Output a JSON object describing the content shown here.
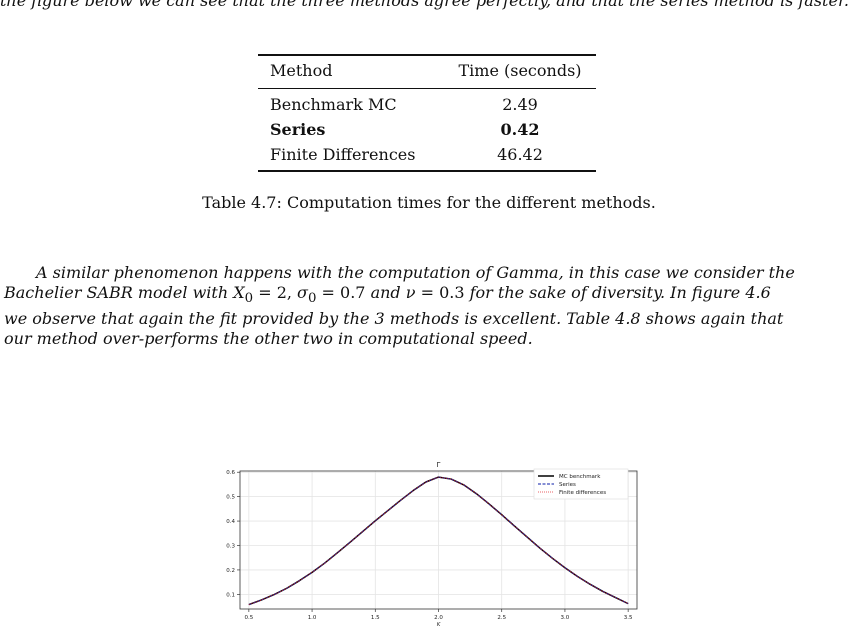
{
  "top_line": "the figure below we can see that the three methods agree perfectly, and that the series method is faster.",
  "table": {
    "headers": [
      "Method",
      "Time (seconds)"
    ],
    "rows": [
      {
        "method": "Benchmark MC",
        "time": "2.49",
        "bold": false
      },
      {
        "method": "Series",
        "time": "0.42",
        "bold": true
      },
      {
        "method": "Finite Differences",
        "time": "46.42",
        "bold": false
      }
    ],
    "caption": "Table 4.7: Computation times for the different methods."
  },
  "paragraph": {
    "p1": "A similar phenomenon happens with the computation of Gamma, in this case we consider the",
    "p2a": "Bachelier SABR model with ",
    "x0": "X",
    "x0_sub": "0",
    "x0_val": " = 2, ",
    "sigma": "σ",
    "sigma_sub": "0",
    "sigma_val": " = 0.7",
    "and": " and ",
    "nu": "ν",
    "nu_val": " = 0.3",
    "p2b": " for the sake of diversity. In figure 4.6",
    "p3": "we observe that again the fit provided by the 3 methods is excellent. Table 4.8 shows again that",
    "p4": "our method over-performs the other two in computational speed."
  },
  "chart_data": {
    "type": "line",
    "title": "Γ",
    "xlabel": "K",
    "ylabel": "",
    "xlim": [
      0.43,
      3.57
    ],
    "ylim": [
      0.04,
      0.605
    ],
    "xticks": [
      "0.5",
      "1.0",
      "1.5",
      "2.0",
      "2.5",
      "3.0",
      "3.5"
    ],
    "yticks": [
      "0.1",
      "0.2",
      "0.3",
      "0.4",
      "0.5",
      "0.6"
    ],
    "grid": true,
    "legend_position": "top-right",
    "x": [
      0.5,
      0.6,
      0.7,
      0.8,
      0.9,
      1.0,
      1.1,
      1.2,
      1.3,
      1.4,
      1.5,
      1.6,
      1.7,
      1.8,
      1.9,
      2.0,
      2.1,
      2.2,
      2.3,
      2.4,
      2.5,
      2.6,
      2.7,
      2.8,
      2.9,
      3.0,
      3.1,
      3.2,
      3.3,
      3.4,
      3.5
    ],
    "series": [
      {
        "name": "MC benchmark",
        "color": "#000000",
        "style": "solid",
        "values": [
          0.058,
          0.077,
          0.099,
          0.125,
          0.156,
          0.19,
          0.228,
          0.27,
          0.313,
          0.357,
          0.401,
          0.443,
          0.485,
          0.525,
          0.56,
          0.58,
          0.572,
          0.548,
          0.512,
          0.47,
          0.426,
          0.38,
          0.335,
          0.29,
          0.248,
          0.209,
          0.173,
          0.141,
          0.112,
          0.087,
          0.062
        ]
      },
      {
        "name": "Series",
        "color": "#0b1ea8",
        "style": "dashed",
        "values": [
          0.058,
          0.077,
          0.099,
          0.125,
          0.156,
          0.19,
          0.228,
          0.27,
          0.313,
          0.357,
          0.401,
          0.443,
          0.485,
          0.525,
          0.56,
          0.58,
          0.572,
          0.548,
          0.512,
          0.47,
          0.426,
          0.38,
          0.335,
          0.29,
          0.248,
          0.209,
          0.173,
          0.141,
          0.112,
          0.087,
          0.062
        ]
      },
      {
        "name": "Finite differences",
        "color": "#e0191f",
        "style": "dotted",
        "values": [
          0.058,
          0.077,
          0.099,
          0.125,
          0.156,
          0.19,
          0.228,
          0.27,
          0.313,
          0.357,
          0.401,
          0.443,
          0.485,
          0.525,
          0.56,
          0.58,
          0.572,
          0.548,
          0.512,
          0.47,
          0.426,
          0.38,
          0.335,
          0.29,
          0.248,
          0.209,
          0.173,
          0.141,
          0.112,
          0.087,
          0.062
        ]
      }
    ]
  }
}
